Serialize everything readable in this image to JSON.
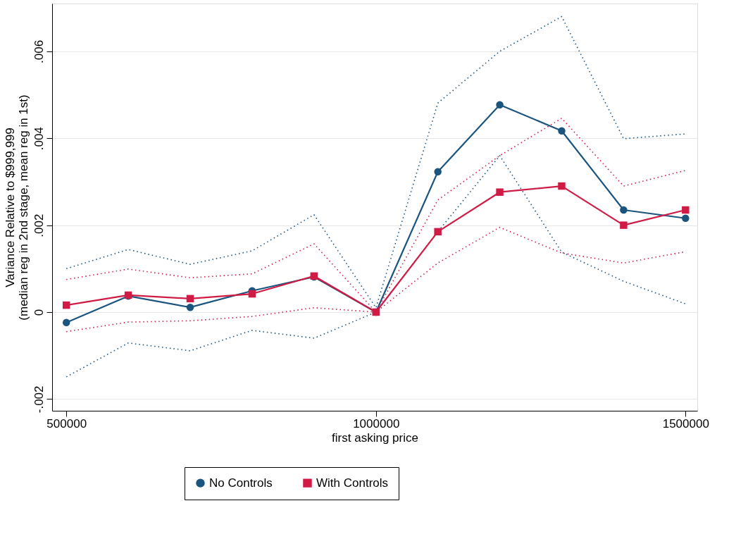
{
  "chart_data": {
    "type": "line",
    "xlabel": "first asking price",
    "ylabel": "Variance Relative to $999,999\n(median reg in 2nd stage, mean reg in 1st)",
    "x": [
      500000,
      600000,
      700000,
      800000,
      900000,
      1000000,
      1100000,
      1200000,
      1300000,
      1400000,
      1500000
    ],
    "series": [
      {
        "name": "No Controls",
        "color": "#1a5580",
        "marker": "circle",
        "line_style": "solid",
        "values": [
          -0.00024,
          0.00037,
          0.00011,
          0.00049,
          0.00081,
          0,
          0.00323,
          0.00477,
          0.00417,
          0.00235,
          0.00216
        ]
      },
      {
        "name": "With Controls",
        "color": "#d01c45",
        "marker": "square",
        "line_style": "solid",
        "values": [
          0.00016,
          0.00039,
          0.00031,
          0.00042,
          0.00083,
          0,
          0.00185,
          0.00276,
          0.0029,
          0.002,
          0.00235
        ]
      },
      {
        "color": "#1a5580",
        "marker": "none",
        "line_style": "dotted",
        "values": [
          0.001,
          0.00144,
          0.0011,
          0.00141,
          0.00224,
          0.0001,
          0.00481,
          0.006,
          0.0068,
          0.00399,
          0.0041
        ]
      },
      {
        "color": "#1a5580",
        "marker": "none",
        "line_style": "dotted",
        "values": [
          -0.00149,
          -0.00071,
          -0.00089,
          -0.00042,
          -0.0006,
          0,
          0.00185,
          0.0036,
          0.00138,
          0.00071,
          0.00019
        ]
      },
      {
        "color": "#d01c45",
        "marker": "none",
        "line_style": "dotted",
        "values": [
          0.00075,
          0.00099,
          0.00079,
          0.00088,
          0.00157,
          0,
          0.00258,
          0.0036,
          0.00446,
          0.0029,
          0.00326
        ]
      },
      {
        "color": "#d01c45",
        "marker": "none",
        "line_style": "dotted",
        "values": [
          -0.00045,
          -0.00023,
          -0.0002,
          -0.0001,
          0.0001,
          0,
          0.00113,
          0.00195,
          0.00136,
          0.00113,
          0.00139
        ]
      }
    ],
    "xlim": [
      477000,
      1519000
    ],
    "xticks": [
      500000,
      1000000,
      1500000
    ],
    "ylim": [
      -0.00227,
      0.0071
    ],
    "yticks": [
      {
        "value": -0.002,
        "label": "-.002"
      },
      {
        "value": 0,
        "label": "0"
      },
      {
        "value": 0.002,
        "label": ".002"
      },
      {
        "value": 0.004,
        "label": ".004"
      },
      {
        "value": 0.006,
        "label": ".006"
      }
    ],
    "grid": "y",
    "legend": "bottom"
  }
}
